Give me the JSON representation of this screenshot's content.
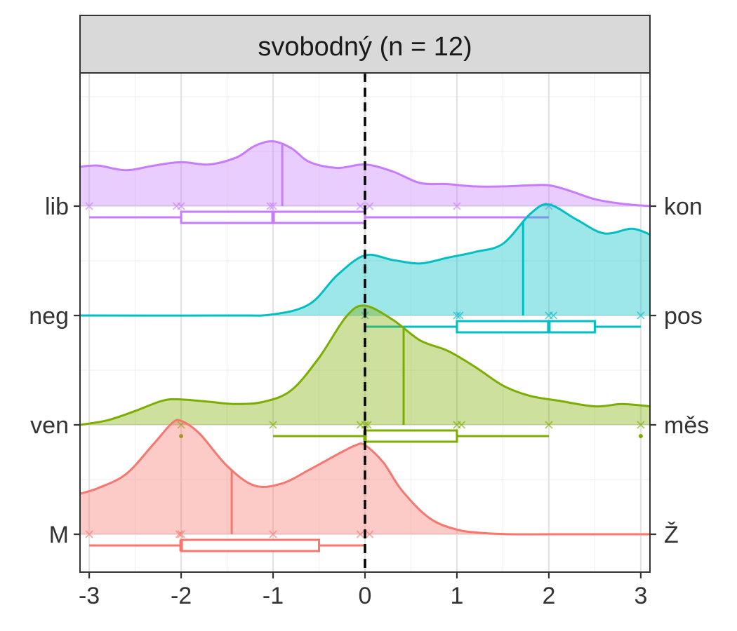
{
  "chart_data": {
    "type": "ridgeline",
    "panel_title": "svobodný (n = 12)",
    "xlim": [
      -3.1,
      3.1
    ],
    "x_ticks": [
      -3,
      -2,
      -1,
      0,
      1,
      2,
      3
    ],
    "x_tick_labels": [
      "-3",
      "-2",
      "-1",
      "0",
      "1",
      "2",
      "3"
    ],
    "reference_line_x": 0,
    "grid": true,
    "series": [
      {
        "left_label": "lib",
        "right_label": "kon",
        "color": "#C77CFF",
        "mean": -0.9,
        "density_x": [
          -3.1,
          -2.9,
          -2.6,
          -2.3,
          -2.0,
          -1.7,
          -1.4,
          -1.2,
          -1.0,
          -0.8,
          -0.6,
          -0.3,
          0.0,
          0.3,
          0.6,
          0.9,
          1.2,
          1.5,
          1.8,
          2.0,
          2.2,
          2.5,
          2.8,
          3.1
        ],
        "density_y": [
          0.34,
          0.35,
          0.31,
          0.35,
          0.38,
          0.36,
          0.42,
          0.52,
          0.56,
          0.5,
          0.38,
          0.33,
          0.36,
          0.3,
          0.2,
          0.19,
          0.17,
          0.17,
          0.18,
          0.18,
          0.14,
          0.06,
          0.02,
          0.0
        ],
        "points": [
          -3,
          -2.05,
          -2,
          -1.03,
          -1,
          -0.05,
          0.05,
          1,
          2
        ],
        "box": {
          "min": -3,
          "q1": -2,
          "median": -1,
          "q3": 0,
          "max": 2
        },
        "outliers": []
      },
      {
        "left_label": "neg",
        "right_label": "pos",
        "color": "#00BFC4",
        "mean": 1.72,
        "density_x": [
          -3.1,
          -1.5,
          -1.0,
          -0.6,
          -0.3,
          0.0,
          0.3,
          0.6,
          0.9,
          1.2,
          1.5,
          1.8,
          2.0,
          2.3,
          2.6,
          2.9,
          3.1
        ],
        "density_y": [
          0.0,
          0.0,
          0.01,
          0.1,
          0.35,
          0.52,
          0.48,
          0.45,
          0.5,
          0.55,
          0.62,
          0.88,
          0.96,
          0.83,
          0.71,
          0.75,
          0.7
        ],
        "points": [
          0,
          1,
          1.03,
          2,
          2.05,
          3
        ],
        "box": {
          "min": 0,
          "q1": 1,
          "median": 2,
          "q3": 2.5,
          "max": 3
        },
        "outliers": []
      },
      {
        "left_label": "ven",
        "right_label": "měs",
        "color": "#7CAE00",
        "mean": 0.42,
        "density_x": [
          -3.1,
          -2.8,
          -2.5,
          -2.2,
          -2.0,
          -1.7,
          -1.4,
          -1.1,
          -0.8,
          -0.5,
          -0.2,
          0.0,
          0.3,
          0.6,
          0.9,
          1.2,
          1.5,
          1.8,
          2.1,
          2.5,
          2.8,
          3.1
        ],
        "density_y": [
          0.0,
          0.04,
          0.12,
          0.21,
          0.22,
          0.2,
          0.18,
          0.2,
          0.3,
          0.58,
          0.94,
          1.03,
          0.91,
          0.73,
          0.64,
          0.5,
          0.34,
          0.25,
          0.21,
          0.16,
          0.18,
          0.16
        ],
        "points": [
          -2,
          -1,
          -0.05,
          0,
          0.03,
          1,
          1.05,
          2,
          3
        ],
        "box": {
          "min": -1,
          "q1": 0,
          "median": 0,
          "q3": 1,
          "max": 2
        },
        "outliers": [
          -2,
          3
        ]
      },
      {
        "left_label": "M",
        "right_label": "Ž",
        "color": "#F8766D",
        "mean": -1.45,
        "density_x": [
          -3.1,
          -2.9,
          -2.6,
          -2.3,
          -2.1,
          -2.0,
          -1.8,
          -1.5,
          -1.2,
          -0.9,
          -0.6,
          -0.3,
          -0.1,
          0.0,
          0.2,
          0.4,
          0.7,
          1.0,
          1.3,
          1.6,
          2.0,
          2.5,
          3.1
        ],
        "density_y": [
          0.35,
          0.4,
          0.52,
          0.78,
          0.96,
          0.98,
          0.87,
          0.59,
          0.42,
          0.44,
          0.56,
          0.69,
          0.77,
          0.77,
          0.62,
          0.38,
          0.14,
          0.04,
          0.01,
          0.0,
          0.0,
          0.0,
          0.0
        ],
        "points": [
          -3,
          -2.02,
          -2,
          -1,
          -0.05,
          0.05
        ],
        "box": {
          "min": -3,
          "q1": -2,
          "median": -2,
          "q3": -0.5,
          "max": 0
        },
        "outliers": []
      }
    ]
  }
}
